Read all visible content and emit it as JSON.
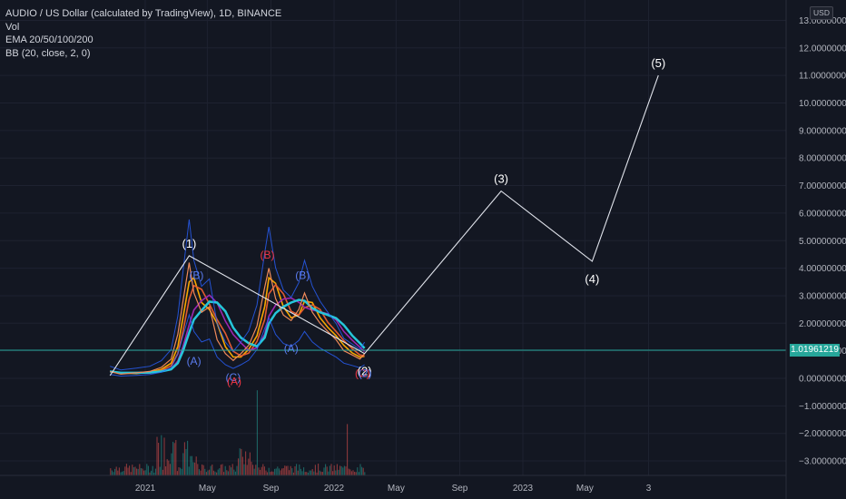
{
  "header": {
    "title": "AUDIO / US Dollar (calculated by TradingView), 1D, BINANCE",
    "indicators": [
      "Vol",
      "EMA 20/50/100/200",
      "BB (20, close, 2, 0)"
    ]
  },
  "currency": "USD",
  "last_price": "1.01961219",
  "colors": {
    "background": "#131722",
    "wave_line": "#e0e3eb",
    "price_line": "#26a69a",
    "ema20": "#f7a600",
    "ema50": "#e05a32",
    "ema100": "#9c27b0",
    "ema200": "#26c6da",
    "bb": "#2962ff",
    "volume_up": "#26a69a",
    "volume_down": "#ef5350"
  },
  "chart_data": {
    "type": "line",
    "symbol": "AUDIO / US Dollar",
    "interval": "1D",
    "exchange": "BINANCE",
    "y_ticks": [
      "13.00000000",
      "12.00000000",
      "11.00000000",
      "10.00000000",
      "9.00000000",
      "8.00000000",
      "7.00000000",
      "6.00000000",
      "5.00000000",
      "4.00000000",
      "3.00000000",
      "2.00000000",
      "1.00000000",
      "0.00000000",
      "−1.00000000",
      "−2.00000000",
      "−3.00000000"
    ],
    "x_ticks": [
      "2021",
      "May",
      "Sep",
      "2022",
      "May",
      "Sep",
      "2023",
      "May",
      "3"
    ],
    "ylim": [
      -3.4,
      13.0
    ],
    "elliott_waves": [
      {
        "label": "",
        "date": "2020-10-25",
        "price": 0.1
      },
      {
        "label": "(1)",
        "date": "2021-03-27",
        "price": 4.45
      },
      {
        "label": "(2)",
        "date": "2022-03-01",
        "price": 0.9
      },
      {
        "label": "(3)",
        "date": "2022-11-20",
        "price": 6.8
      },
      {
        "label": "(4)",
        "date": "2023-05-15",
        "price": 4.25
      },
      {
        "label": "(5)",
        "date": "2023-09-20",
        "price": 11.0
      }
    ],
    "sub_wave_labels": [
      {
        "label": "(B)",
        "color": "blue",
        "date": "2021-04-10",
        "price": 3.6
      },
      {
        "label": "(A)",
        "color": "blue",
        "date": "2021-04-05",
        "price": 0.5
      },
      {
        "label": "(C)",
        "color": "blue",
        "date": "2021-06-20",
        "price": -0.1
      },
      {
        "label": "(A)",
        "color": "red",
        "date": "2021-06-22",
        "price": -0.25
      },
      {
        "label": "(B)",
        "color": "red",
        "date": "2021-08-25",
        "price": 4.35
      },
      {
        "label": "(B)",
        "color": "blue",
        "date": "2021-11-01",
        "price": 3.6
      },
      {
        "label": "(A)",
        "color": "blue",
        "date": "2021-10-10",
        "price": 0.95
      },
      {
        "label": "(C)",
        "color": "red",
        "date": "2022-02-25",
        "price": 0.05
      },
      {
        "label": "(2)",
        "color": "blue",
        "date": "2022-03-02",
        "price": 0.05
      }
    ],
    "price_series": {
      "name": "AUDIOUSD",
      "x": [
        "2020-10-25",
        "2020-11-15",
        "2020-12-15",
        "2021-01-10",
        "2021-02-01",
        "2021-02-20",
        "2021-03-05",
        "2021-03-15",
        "2021-03-27",
        "2021-04-05",
        "2021-04-20",
        "2021-05-05",
        "2021-05-20",
        "2021-06-05",
        "2021-06-20",
        "2021-07-05",
        "2021-07-20",
        "2021-08-05",
        "2021-08-20",
        "2021-08-28",
        "2021-09-10",
        "2021-09-25",
        "2021-10-10",
        "2021-10-25",
        "2021-11-05",
        "2021-11-20",
        "2021-12-05",
        "2021-12-20",
        "2022-01-05",
        "2022-01-20",
        "2022-02-05",
        "2022-02-20",
        "2022-03-01"
      ],
      "y": [
        0.25,
        0.15,
        0.2,
        0.25,
        0.4,
        0.7,
        1.6,
        2.8,
        4.2,
        3.1,
        2.4,
        2.6,
        1.4,
        0.9,
        0.65,
        0.9,
        1.2,
        1.9,
        3.3,
        4.0,
        2.9,
        2.3,
        2.1,
        2.5,
        3.1,
        2.4,
        2.0,
        1.7,
        1.4,
        1.0,
        0.85,
        0.7,
        0.9
      ]
    }
  }
}
